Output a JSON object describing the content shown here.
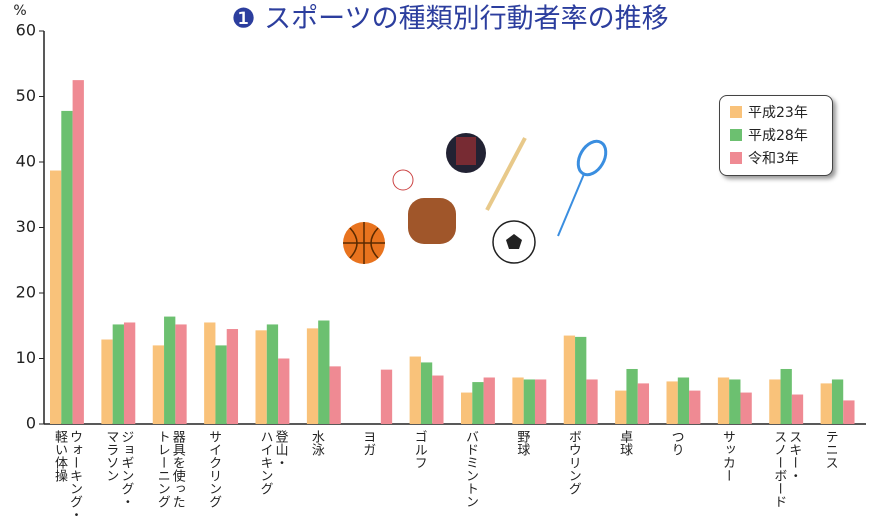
{
  "chart_data": {
    "type": "bar",
    "title": "❶ スポーツの種類別行動者率の推移",
    "y_unit": "%",
    "categories": [
      "ウォーキング・\n軽い体操",
      "ジョギング・\nマラソン",
      "器具を使った\nトレーニング",
      "サイクリング",
      "登山・\nハイキング",
      "水泳",
      "ヨガ",
      "ゴルフ",
      "バドミントン",
      "野球",
      "ボウリング",
      "卓球",
      "つり",
      "サッカー",
      "スキー・\nスノーボード",
      "テニス"
    ],
    "series": [
      {
        "name": "平成23年",
        "color": "#f9c27a",
        "values": [
          38.7,
          12.9,
          12.0,
          15.5,
          14.3,
          14.6,
          null,
          10.3,
          4.8,
          7.1,
          13.5,
          5.1,
          6.5,
          7.1,
          6.8,
          6.2
        ]
      },
      {
        "name": "平成28年",
        "color": "#6cc070",
        "values": [
          47.8,
          15.2,
          16.4,
          12.0,
          15.2,
          15.8,
          null,
          9.4,
          6.4,
          6.8,
          13.3,
          8.4,
          7.1,
          6.8,
          8.4,
          6.8
        ]
      },
      {
        "name": "令和3年",
        "color": "#ef8a93",
        "values": [
          52.5,
          15.5,
          15.2,
          14.5,
          10.0,
          8.8,
          8.3,
          7.4,
          7.1,
          6.8,
          6.8,
          6.2,
          5.1,
          4.8,
          4.5,
          3.6
        ]
      }
    ],
    "ylim": [
      0,
      60
    ],
    "yticks": [
      0,
      10,
      20,
      30,
      40,
      50,
      60
    ],
    "grid": false,
    "legend": "upper right"
  }
}
